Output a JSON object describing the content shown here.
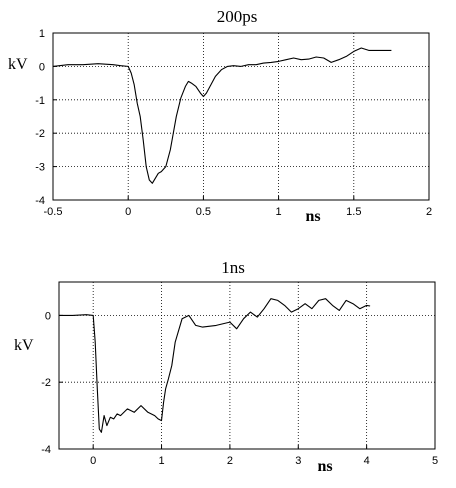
{
  "chart_data": [
    {
      "type": "line",
      "title": "200ps",
      "xlabel": "ns",
      "ylabel": "kV",
      "xlim": [
        -0.5,
        2
      ],
      "ylim": [
        -4,
        1
      ],
      "xticks": [
        -0.5,
        0,
        0.5,
        1,
        1.5,
        2
      ],
      "xtick_labels": [
        "-0.5",
        "0",
        "0.5",
        "1",
        "1.5",
        "2"
      ],
      "yticks": [
        1,
        0,
        -1,
        -2,
        -3,
        -4
      ],
      "ytick_labels": [
        "1",
        "0",
        "-1",
        "-2",
        "-3",
        "-4"
      ],
      "grid": true,
      "series": [
        {
          "x": [
            -0.5,
            -0.4,
            -0.3,
            -0.2,
            -0.1,
            -0.05,
            0,
            0.02,
            0.04,
            0.06,
            0.08,
            0.1,
            0.12,
            0.14,
            0.16,
            0.18,
            0.2,
            0.22,
            0.25,
            0.28,
            0.3,
            0.32,
            0.35,
            0.38,
            0.4,
            0.42,
            0.45,
            0.48,
            0.5,
            0.52,
            0.55,
            0.58,
            0.62,
            0.66,
            0.7,
            0.75,
            0.8,
            0.85,
            0.9,
            0.95,
            1.0,
            1.05,
            1.1,
            1.15,
            1.2,
            1.25,
            1.3,
            1.35,
            1.4,
            1.45,
            1.5,
            1.55,
            1.6,
            1.75
          ],
          "y": [
            0.0,
            0.05,
            0.05,
            0.08,
            0.05,
            0.02,
            0.0,
            -0.2,
            -0.55,
            -1.1,
            -1.5,
            -2.2,
            -3.0,
            -3.4,
            -3.5,
            -3.35,
            -3.2,
            -3.15,
            -3.0,
            -2.5,
            -2.0,
            -1.5,
            -0.95,
            -0.6,
            -0.45,
            -0.5,
            -0.6,
            -0.8,
            -0.9,
            -0.8,
            -0.55,
            -0.3,
            -0.1,
            0.0,
            0.02,
            0.0,
            0.05,
            0.05,
            0.1,
            0.12,
            0.15,
            0.2,
            0.25,
            0.2,
            0.22,
            0.28,
            0.25,
            0.12,
            0.2,
            0.3,
            0.45,
            0.55,
            0.48,
            0.48
          ]
        }
      ]
    },
    {
      "type": "line",
      "title": "1ns",
      "xlabel": "ns",
      "ylabel": "kV",
      "xlim": [
        -0.5,
        5
      ],
      "ylim": [
        -4,
        1
      ],
      "xticks": [
        0,
        1,
        2,
        3,
        4,
        5
      ],
      "xtick_labels": [
        "0",
        "1",
        "2",
        "3",
        "4",
        "5"
      ],
      "yticks": [
        0,
        -2,
        -4
      ],
      "ytick_labels": [
        "0",
        "-2",
        "-4"
      ],
      "grid": true,
      "series": [
        {
          "x": [
            -0.5,
            -0.3,
            -0.1,
            0,
            0.03,
            0.06,
            0.09,
            0.12,
            0.16,
            0.2,
            0.25,
            0.3,
            0.35,
            0.4,
            0.5,
            0.6,
            0.7,
            0.8,
            0.9,
            0.95,
            1.0,
            1.03,
            1.06,
            1.1,
            1.15,
            1.2,
            1.3,
            1.4,
            1.5,
            1.6,
            1.8,
            2.0,
            2.1,
            2.2,
            2.3,
            2.4,
            2.5,
            2.6,
            2.7,
            2.8,
            2.9,
            3.0,
            3.1,
            3.2,
            3.3,
            3.4,
            3.5,
            3.6,
            3.7,
            3.8,
            3.9,
            4.0,
            4.05
          ],
          "y": [
            0.0,
            0.0,
            0.02,
            0.0,
            -0.8,
            -2.2,
            -3.4,
            -3.5,
            -3.0,
            -3.3,
            -3.05,
            -3.1,
            -2.95,
            -3.0,
            -2.8,
            -2.9,
            -2.7,
            -2.9,
            -3.0,
            -3.1,
            -3.15,
            -2.6,
            -2.2,
            -1.9,
            -1.5,
            -0.8,
            -0.1,
            0.0,
            -0.3,
            -0.35,
            -0.3,
            -0.2,
            -0.4,
            -0.1,
            0.1,
            -0.05,
            0.2,
            0.5,
            0.45,
            0.3,
            0.1,
            0.2,
            0.35,
            0.2,
            0.45,
            0.5,
            0.3,
            0.15,
            0.45,
            0.35,
            0.2,
            0.3,
            0.28
          ]
        }
      ]
    }
  ]
}
